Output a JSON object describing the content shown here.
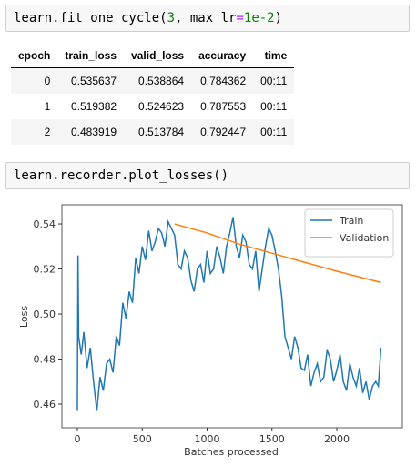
{
  "cells": [
    {
      "code": [
        "learn.fit_one_cycle(",
        "3",
        ", max_lr",
        "=",
        "1e-2",
        ")"
      ]
    },
    {
      "code": [
        "learn.recorder.plot_losses()"
      ]
    }
  ],
  "table": {
    "header": [
      "epoch",
      "train_loss",
      "valid_loss",
      "accuracy",
      "time"
    ],
    "rows": [
      [
        "0",
        "0.535637",
        "0.538864",
        "0.784362",
        "00:11"
      ],
      [
        "1",
        "0.519382",
        "0.524623",
        "0.787553",
        "00:11"
      ],
      [
        "2",
        "0.483919",
        "0.513784",
        "0.792447",
        "00:11"
      ]
    ]
  },
  "chart_data": {
    "type": "line",
    "xlabel": "Batches processed",
    "ylabel": "Loss",
    "xlim": [
      -119,
      2505
    ],
    "ylim": [
      0.4495,
      0.5485
    ],
    "xticks": [
      0,
      500,
      1000,
      1500,
      2000
    ],
    "yticks": [
      0.46,
      0.48,
      {
        "value": 0.5,
        "label": "0.50"
      },
      0.52,
      0.54
    ],
    "legend": "upper right",
    "series": [
      {
        "name": "Train",
        "color": "#1f77b4",
        "x": [
          0,
          5,
          10,
          30,
          50,
          75,
          100,
          125,
          150,
          175,
          200,
          225,
          250,
          275,
          300,
          325,
          350,
          375,
          400,
          425,
          450,
          475,
          500,
          525,
          550,
          575,
          600,
          625,
          650,
          675,
          700,
          725,
          750,
          775,
          800,
          825,
          850,
          875,
          900,
          925,
          950,
          975,
          1000,
          1025,
          1050,
          1075,
          1100,
          1125,
          1150,
          1175,
          1200,
          1225,
          1250,
          1275,
          1300,
          1325,
          1350,
          1375,
          1400,
          1425,
          1450,
          1475,
          1500,
          1525,
          1550,
          1575,
          1600,
          1625,
          1650,
          1675,
          1700,
          1725,
          1750,
          1775,
          1800,
          1825,
          1850,
          1875,
          1900,
          1925,
          1950,
          1975,
          2000,
          2025,
          2050,
          2075,
          2100,
          2125,
          2150,
          2175,
          2200,
          2225,
          2250,
          2275,
          2300,
          2320,
          2340
        ],
        "values": [
          0.457,
          0.526,
          0.49,
          0.482,
          0.492,
          0.476,
          0.485,
          0.47,
          0.457,
          0.472,
          0.466,
          0.478,
          0.48,
          0.474,
          0.49,
          0.486,
          0.505,
          0.498,
          0.51,
          0.505,
          0.525,
          0.518,
          0.53,
          0.524,
          0.537,
          0.528,
          0.532,
          0.538,
          0.536,
          0.53,
          0.541,
          0.538,
          0.535,
          0.522,
          0.52,
          0.528,
          0.525,
          0.515,
          0.51,
          0.52,
          0.522,
          0.514,
          0.528,
          0.518,
          0.52,
          0.53,
          0.525,
          0.518,
          0.53,
          0.536,
          0.543,
          0.53,
          0.525,
          0.535,
          0.532,
          0.522,
          0.52,
          0.528,
          0.51,
          0.52,
          0.53,
          0.538,
          0.535,
          0.528,
          0.52,
          0.508,
          0.49,
          0.485,
          0.48,
          0.49,
          0.485,
          0.476,
          0.475,
          0.482,
          0.468,
          0.474,
          0.478,
          0.47,
          0.472,
          0.484,
          0.48,
          0.47,
          0.475,
          0.482,
          0.47,
          0.466,
          0.478,
          0.472,
          0.468,
          0.476,
          0.465,
          0.47,
          0.462,
          0.468,
          0.47,
          0.468,
          0.485
        ]
      },
      {
        "name": "Validation",
        "color": "#ff7f0e",
        "x": [
          750,
          1000,
          1250,
          1500,
          1750,
          2000,
          2340
        ],
        "values": [
          0.54,
          0.536,
          0.531,
          0.527,
          0.523,
          0.519,
          0.514
        ]
      }
    ]
  }
}
